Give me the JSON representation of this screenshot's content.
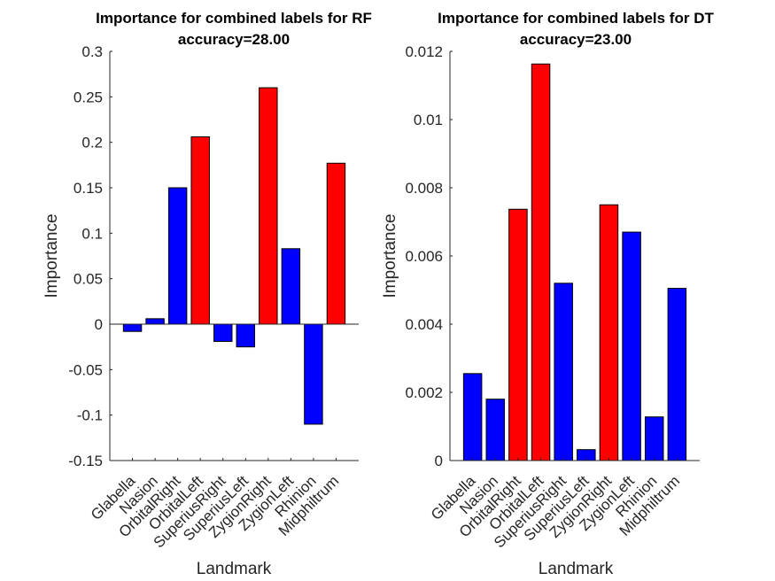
{
  "chart_data": [
    {
      "type": "bar",
      "title": [
        "Importance for combined labels for RF",
        "accuracy=28.00"
      ],
      "xlabel": "Landmark",
      "ylabel": "Importance",
      "ylim": [
        -0.15,
        0.3
      ],
      "yticks": [
        -0.15,
        -0.1,
        -0.05,
        0,
        0.05,
        0.1,
        0.15,
        0.2,
        0.25,
        0.3
      ],
      "ytick_labels": [
        "-0.15",
        "-0.1",
        "-0.05",
        "0",
        "0.05",
        "0.1",
        "0.15",
        "0.2",
        "0.25",
        "0.3"
      ],
      "categories": [
        "Glabella",
        "Nasion",
        "OrbitalRight",
        "OrbitalLeft",
        "SuperiusRight",
        "SuperiusLeft",
        "ZygionRight",
        "ZygionLeft",
        "Rhinion",
        "Midphiltrum"
      ],
      "values": [
        -0.008,
        0.006,
        0.15,
        0.206,
        -0.019,
        -0.025,
        0.26,
        0.083,
        -0.11,
        0.177
      ],
      "colors": [
        "#0000ff",
        "#0000ff",
        "#0000ff",
        "#ff0000",
        "#0000ff",
        "#0000ff",
        "#ff0000",
        "#0000ff",
        "#0000ff",
        "#ff0000"
      ],
      "grid": false
    },
    {
      "type": "bar",
      "title": [
        "Importance for combined labels for DT",
        "accuracy=23.00"
      ],
      "xlabel": "Landmark",
      "ylabel": "Importance",
      "ylim": [
        0,
        0.012
      ],
      "yticks": [
        0,
        0.002,
        0.004,
        0.006,
        0.008,
        0.01,
        0.012
      ],
      "ytick_labels": [
        "0",
        "0.002",
        "0.004",
        "0.006",
        "0.008",
        "0.01",
        "0.012"
      ],
      "categories": [
        "Glabella",
        "Nasion",
        "OrbitalRight",
        "OrbitalLeft",
        "SuperiusRight",
        "SuperiusLeft",
        "ZygionRight",
        "ZygionLeft",
        "Rhinion",
        "Midphiltrum"
      ],
      "values": [
        0.00255,
        0.0018,
        0.00737,
        0.01163,
        0.0052,
        0.00032,
        0.0075,
        0.0067,
        0.00128,
        0.00505
      ],
      "colors": [
        "#0000ff",
        "#0000ff",
        "#ff0000",
        "#ff0000",
        "#0000ff",
        "#0000ff",
        "#ff0000",
        "#0000ff",
        "#0000ff",
        "#0000ff"
      ],
      "grid": false
    }
  ]
}
